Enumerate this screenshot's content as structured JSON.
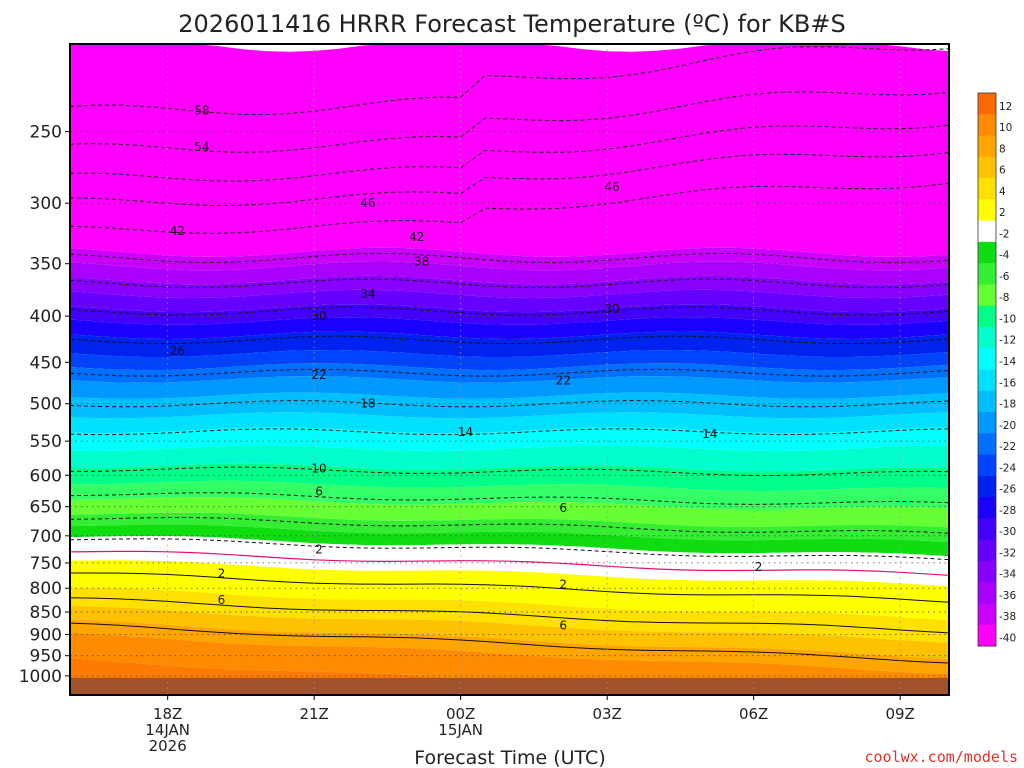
{
  "title": "2026011416 HRRR Forecast Temperature (ºC) for KB#S",
  "credit": "coolwx.com/models",
  "chart_data": {
    "type": "heatmap",
    "title": "2026011416 HRRR Forecast Temperature (ºC) for KB#S",
    "xlabel": "Forecast Time (UTC)",
    "ylabel": "",
    "x_range_hours": [
      16,
      34
    ],
    "y_range_hpa": [
      1050,
      200
    ],
    "y_scale": "log",
    "y_ticks": [
      250,
      300,
      350,
      400,
      450,
      500,
      550,
      600,
      650,
      700,
      750,
      800,
      850,
      900,
      950,
      1000
    ],
    "x_ticks": [
      {
        "hour": 18,
        "lines": [
          "18Z",
          "14JAN",
          "2026"
        ]
      },
      {
        "hour": 21,
        "lines": [
          "21Z"
        ]
      },
      {
        "hour": 24,
        "lines": [
          "00Z",
          "15JAN"
        ]
      },
      {
        "hour": 27,
        "lines": [
          "03Z"
        ]
      },
      {
        "hour": 30,
        "lines": [
          "06Z"
        ]
      },
      {
        "hour": 33,
        "lines": [
          "09Z"
        ]
      }
    ],
    "colorbar": {
      "labels": [
        "12",
        "10",
        "8",
        "6",
        "4",
        "2",
        "-2",
        "-4",
        "-6",
        "-8",
        "-10",
        "-12",
        "-14",
        "-16",
        "-18",
        "-20",
        "-22",
        "-24",
        "-26",
        "-28",
        "-30",
        "-32",
        "-34",
        "-36",
        "-38",
        "-40"
      ],
      "colors": [
        "#ff6a00",
        "#ff8c00",
        "#ffa500",
        "#ffc200",
        "#ffe100",
        "#ffff00",
        "#ffffff",
        "#10dd10",
        "#33ee33",
        "#66ff33",
        "#00ff88",
        "#00ffcc",
        "#00ffff",
        "#00e0ff",
        "#00bfff",
        "#0099ff",
        "#0070ff",
        "#0044ff",
        "#0022ee",
        "#1a00ff",
        "#4400ff",
        "#6600ff",
        "#8800ff",
        "#aa00ff",
        "#cc00ff",
        "#ff00ff"
      ]
    },
    "isotherm_labels": [
      {
        "text": "58",
        "x": 18.7,
        "p": 237
      },
      {
        "text": "54",
        "x": 18.7,
        "p": 260
      },
      {
        "text": "46",
        "x": 22.1,
        "p": 300
      },
      {
        "text": "46",
        "x": 27.1,
        "p": 288
      },
      {
        "text": "42",
        "x": 18.2,
        "p": 322
      },
      {
        "text": "42",
        "x": 23.1,
        "p": 327
      },
      {
        "text": "38",
        "x": 23.2,
        "p": 348
      },
      {
        "text": "34",
        "x": 22.1,
        "p": 378
      },
      {
        "text": "30",
        "x": 21.1,
        "p": 400
      },
      {
        "text": "30",
        "x": 27.1,
        "p": 393
      },
      {
        "text": "26",
        "x": 18.2,
        "p": 437
      },
      {
        "text": "22",
        "x": 21.1,
        "p": 465
      },
      {
        "text": "22",
        "x": 26.1,
        "p": 471
      },
      {
        "text": "18",
        "x": 22.1,
        "p": 500
      },
      {
        "text": "14",
        "x": 24.1,
        "p": 537
      },
      {
        "text": "14",
        "x": 29.1,
        "p": 540
      },
      {
        "text": "10",
        "x": 21.1,
        "p": 590
      },
      {
        "text": "6",
        "x": 21.1,
        "p": 625
      },
      {
        "text": "6",
        "x": 26.1,
        "p": 652
      },
      {
        "text": "2",
        "x": 21.1,
        "p": 725
      },
      {
        "text": "2",
        "x": 30.1,
        "p": 758
      },
      {
        "text": "2",
        "x": 19.1,
        "p": 771
      },
      {
        "text": "2",
        "x": 26.1,
        "p": 792
      },
      {
        "text": "6",
        "x": 19.1,
        "p": 824
      },
      {
        "text": "6",
        "x": 26.1,
        "p": 880
      }
    ]
  }
}
